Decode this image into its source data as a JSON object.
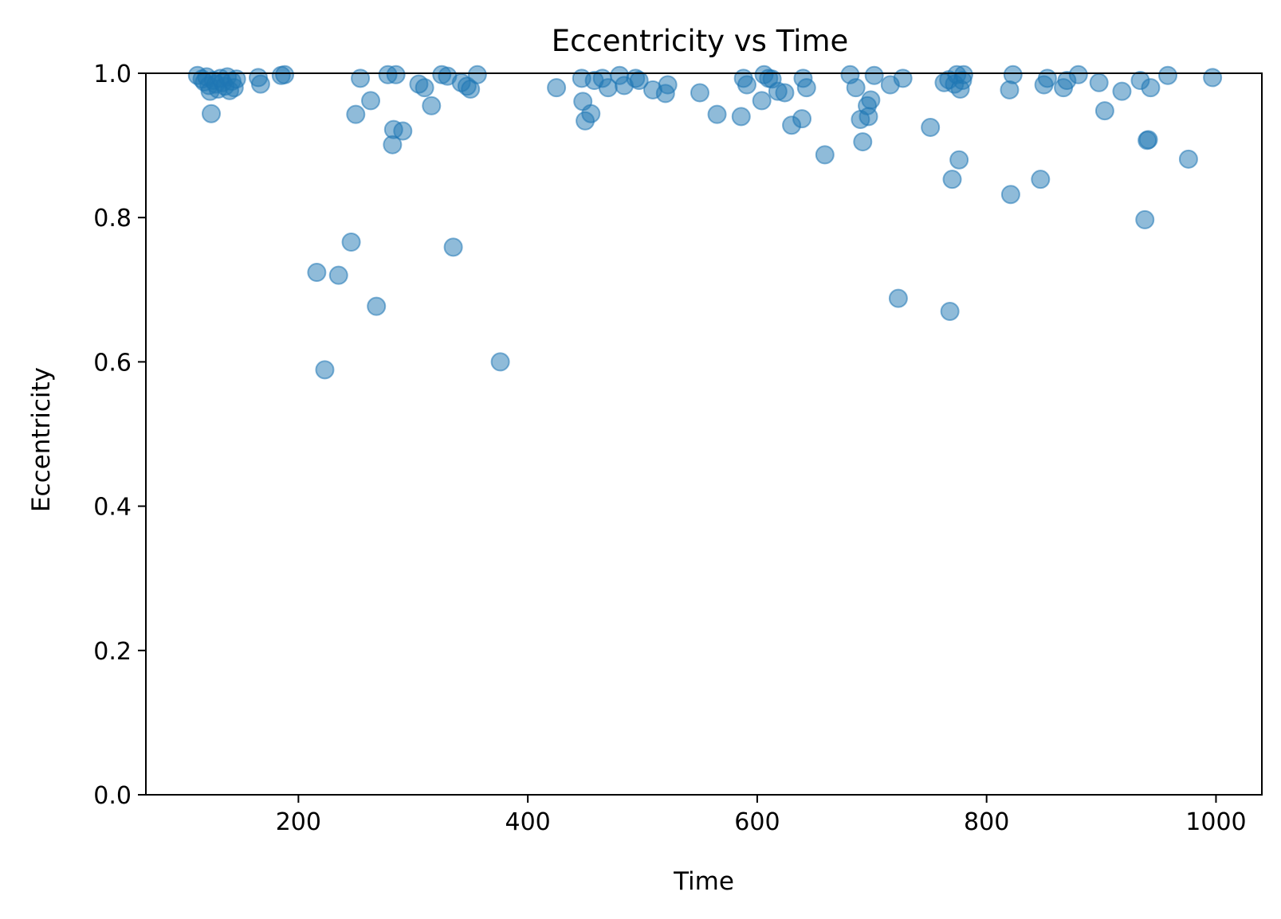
{
  "chart_data": {
    "type": "scatter",
    "title": "Eccentricity vs Time",
    "xlabel": "Time",
    "ylabel": "Eccentricity",
    "xlim": [
      67,
      1040
    ],
    "ylim": [
      0,
      1
    ],
    "xticks": [
      200,
      400,
      600,
      800,
      1000
    ],
    "yticks": [
      0.0,
      0.2,
      0.4,
      0.6,
      0.8,
      1.0
    ],
    "xtick_labels": [
      "200",
      "400",
      "600",
      "800",
      "1000"
    ],
    "ytick_labels": [
      "0.0",
      "0.2",
      "0.4",
      "0.6",
      "0.8",
      "1.0"
    ],
    "grid": false,
    "marker_color": "#1f77b4",
    "marker_alpha": 0.5,
    "points": [
      [
        112,
        0.997
      ],
      [
        116,
        0.992
      ],
      [
        118,
        0.988
      ],
      [
        120,
        0.995
      ],
      [
        122,
        0.983
      ],
      [
        123,
        0.975
      ],
      [
        124,
        0.944
      ],
      [
        126,
        0.99
      ],
      [
        128,
        0.985
      ],
      [
        130,
        0.978
      ],
      [
        132,
        0.993
      ],
      [
        134,
        0.987
      ],
      [
        136,
        0.982
      ],
      [
        138,
        0.995
      ],
      [
        140,
        0.976
      ],
      [
        142,
        0.989
      ],
      [
        144,
        0.98
      ],
      [
        146,
        0.992
      ],
      [
        165,
        0.994
      ],
      [
        167,
        0.985
      ],
      [
        185,
        0.997
      ],
      [
        188,
        0.998
      ],
      [
        216,
        0.724
      ],
      [
        223,
        0.589
      ],
      [
        235,
        0.72
      ],
      [
        246,
        0.766
      ],
      [
        250,
        0.943
      ],
      [
        254,
        0.993
      ],
      [
        263,
        0.962
      ],
      [
        268,
        0.677
      ],
      [
        278,
        0.998
      ],
      [
        282,
        0.901
      ],
      [
        283,
        0.922
      ],
      [
        285,
        0.998
      ],
      [
        291,
        0.92
      ],
      [
        305,
        0.985
      ],
      [
        310,
        0.98
      ],
      [
        316,
        0.955
      ],
      [
        325,
        0.998
      ],
      [
        330,
        0.996
      ],
      [
        335,
        0.759
      ],
      [
        342,
        0.987
      ],
      [
        347,
        0.982
      ],
      [
        350,
        0.978
      ],
      [
        356,
        0.998
      ],
      [
        376,
        0.6
      ],
      [
        425,
        0.98
      ],
      [
        447,
        0.993
      ],
      [
        448,
        0.961
      ],
      [
        450,
        0.934
      ],
      [
        455,
        0.944
      ],
      [
        458,
        0.99
      ],
      [
        465,
        0.993
      ],
      [
        470,
        0.98
      ],
      [
        480,
        0.997
      ],
      [
        484,
        0.983
      ],
      [
        494,
        0.993
      ],
      [
        497,
        0.99
      ],
      [
        509,
        0.977
      ],
      [
        520,
        0.972
      ],
      [
        522,
        0.984
      ],
      [
        550,
        0.973
      ],
      [
        565,
        0.943
      ],
      [
        586,
        0.94
      ],
      [
        588,
        0.993
      ],
      [
        591,
        0.984
      ],
      [
        604,
        0.962
      ],
      [
        606,
        0.998
      ],
      [
        610,
        0.993
      ],
      [
        613,
        0.992
      ],
      [
        618,
        0.975
      ],
      [
        624,
        0.973
      ],
      [
        630,
        0.928
      ],
      [
        639,
        0.937
      ],
      [
        640,
        0.993
      ],
      [
        643,
        0.98
      ],
      [
        659,
        0.887
      ],
      [
        681,
        0.998
      ],
      [
        686,
        0.98
      ],
      [
        690,
        0.936
      ],
      [
        692,
        0.905
      ],
      [
        696,
        0.955
      ],
      [
        697,
        0.94
      ],
      [
        699,
        0.963
      ],
      [
        702,
        0.997
      ],
      [
        716,
        0.984
      ],
      [
        723,
        0.688
      ],
      [
        727,
        0.993
      ],
      [
        751,
        0.925
      ],
      [
        763,
        0.987
      ],
      [
        767,
        0.991
      ],
      [
        768,
        0.67
      ],
      [
        770,
        0.853
      ],
      [
        772,
        0.985
      ],
      [
        774,
        0.998
      ],
      [
        776,
        0.88
      ],
      [
        777,
        0.978
      ],
      [
        779,
        0.99
      ],
      [
        780,
        0.998
      ],
      [
        820,
        0.977
      ],
      [
        821,
        0.832
      ],
      [
        823,
        0.998
      ],
      [
        847,
        0.853
      ],
      [
        850,
        0.984
      ],
      [
        853,
        0.993
      ],
      [
        867,
        0.98
      ],
      [
        870,
        0.99
      ],
      [
        880,
        0.998
      ],
      [
        898,
        0.987
      ],
      [
        903,
        0.948
      ],
      [
        918,
        0.975
      ],
      [
        934,
        0.99
      ],
      [
        938,
        0.797
      ],
      [
        940,
        0.907
      ],
      [
        941,
        0.908
      ],
      [
        943,
        0.98
      ],
      [
        958,
        0.997
      ],
      [
        976,
        0.881
      ],
      [
        997,
        0.994
      ]
    ]
  }
}
